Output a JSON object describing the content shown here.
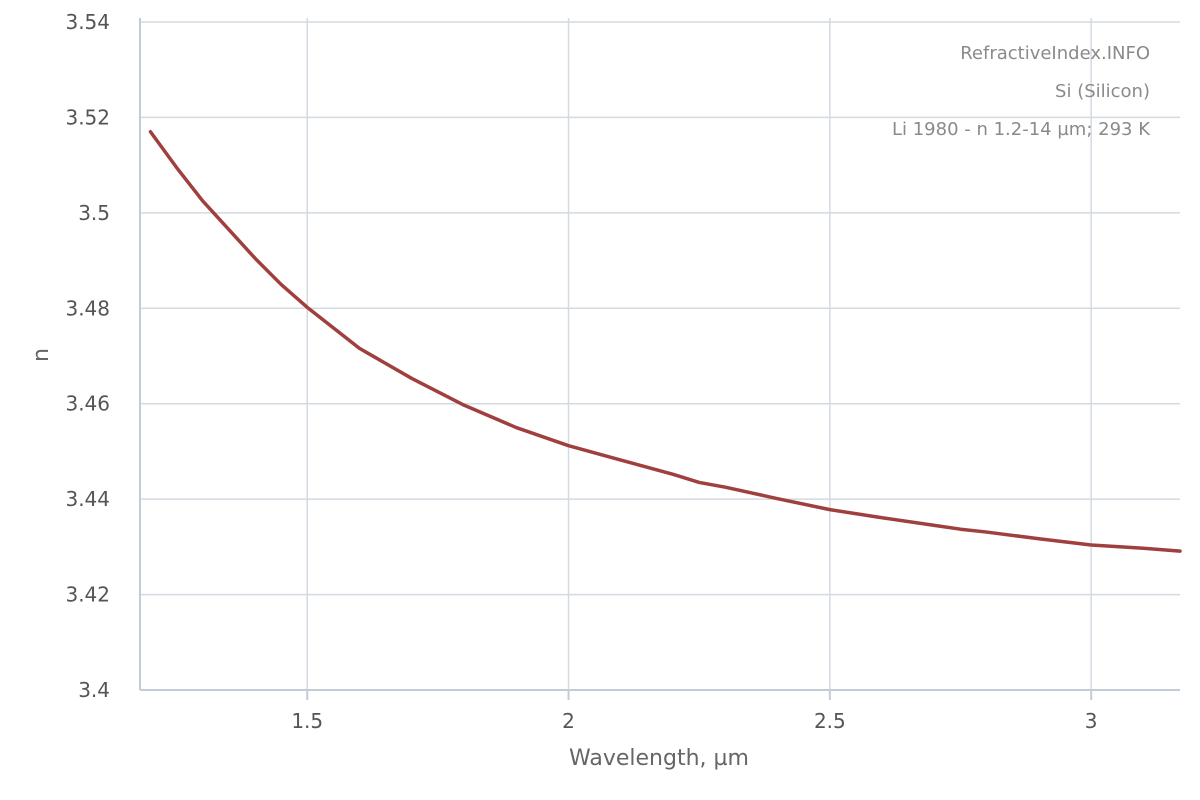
{
  "chart_data": {
    "type": "line",
    "xlabel": "Wavelength, µm",
    "ylabel": "n",
    "xlim": [
      1.18,
      3.17
    ],
    "ylim": [
      3.4,
      3.54
    ],
    "x_ticks": [
      "1.5",
      "2",
      "2.5",
      "3"
    ],
    "y_ticks": [
      "3.4",
      "3.42",
      "3.44",
      "3.46",
      "3.48",
      "3.5",
      "3.52",
      "3.54"
    ],
    "grid": true,
    "legend": "none",
    "annotations": [
      "RefractiveIndex.INFO",
      "Si (Silicon)",
      "Li 1980 - n 1.2-14 µm; 293 K"
    ],
    "series": [
      {
        "color": "#a0403e",
        "x": [
          1.2,
          1.25,
          1.3,
          1.35,
          1.4,
          1.45,
          1.5,
          1.6,
          1.7,
          1.8,
          1.9,
          2.0,
          2.1,
          2.2,
          2.25,
          2.3,
          2.4,
          2.5,
          2.6,
          2.7,
          2.75,
          2.8,
          2.9,
          3.0,
          3.1,
          3.17
        ],
        "y": [
          3.517,
          3.5095,
          3.5025,
          3.4965,
          3.4905,
          3.485,
          3.4802,
          3.4716,
          3.4653,
          3.4597,
          3.455,
          3.4512,
          3.4482,
          3.4452,
          3.4435,
          3.4425,
          3.4401,
          3.4378,
          3.4361,
          3.4345,
          3.4337,
          3.4331,
          3.4317,
          3.4304,
          3.4297,
          3.4291
        ]
      }
    ]
  }
}
